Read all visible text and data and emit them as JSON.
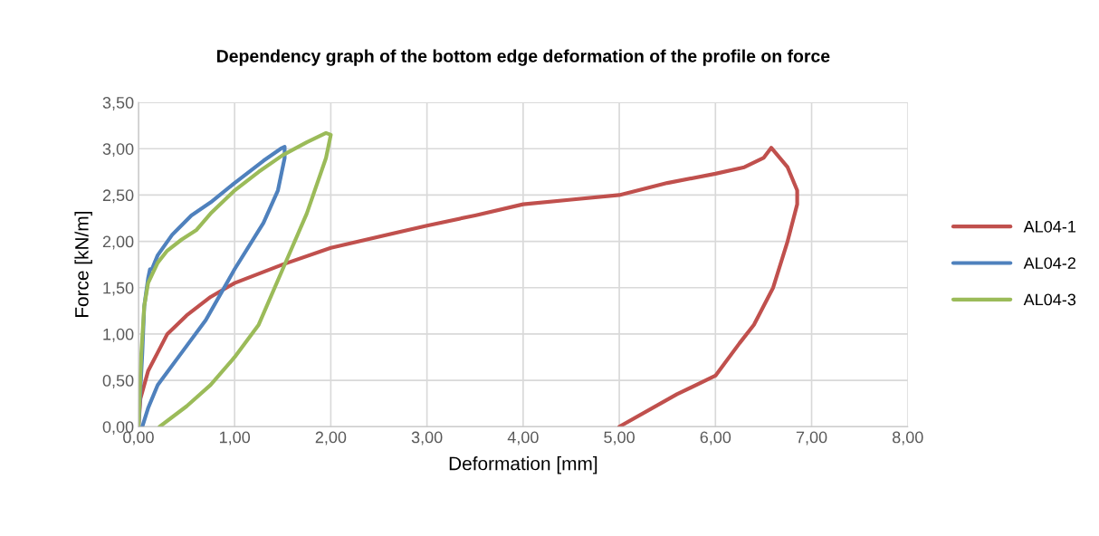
{
  "chart_data": {
    "type": "line",
    "title": "Dependency graph of the bottom edge deformation of the profile on force",
    "xlabel": "Deformation [mm]",
    "ylabel": "Force [kN/m]",
    "xlim": [
      0,
      8
    ],
    "ylim": [
      0,
      3.5
    ],
    "xticks": [
      {
        "value": 0,
        "label": "0,00"
      },
      {
        "value": 1,
        "label": "1,00"
      },
      {
        "value": 2,
        "label": "2,00"
      },
      {
        "value": 3,
        "label": "3,00"
      },
      {
        "value": 4,
        "label": "4,00"
      },
      {
        "value": 5,
        "label": "5,00"
      },
      {
        "value": 6,
        "label": "6,00"
      },
      {
        "value": 7,
        "label": "7,00"
      },
      {
        "value": 8,
        "label": "8,00"
      }
    ],
    "yticks": [
      {
        "value": 0,
        "label": "0,00"
      },
      {
        "value": 0.5,
        "label": "0,50"
      },
      {
        "value": 1,
        "label": "1,00"
      },
      {
        "value": 1.5,
        "label": "1,50"
      },
      {
        "value": 2,
        "label": "2,00"
      },
      {
        "value": 2.5,
        "label": "2,50"
      },
      {
        "value": 3,
        "label": "3,00"
      },
      {
        "value": 3.5,
        "label": "3,50"
      }
    ],
    "grid": true,
    "legend": "right",
    "marker": "none",
    "line_style": "solid",
    "series": [
      {
        "name": "AL04-1",
        "color": "#c0504d",
        "x": [
          0,
          0.02,
          0.1,
          0.2,
          0.3,
          0.5,
          0.75,
          1.0,
          1.5,
          2.0,
          3.0,
          3.5,
          4.0,
          4.5,
          5.0,
          5.5,
          6.0,
          6.3,
          6.5,
          6.58,
          6.75,
          6.85,
          6.85,
          6.75,
          6.6,
          6.4,
          6.25,
          6.0,
          5.6,
          5.0
        ],
        "values": [
          0,
          0.3,
          0.6,
          0.8,
          1.0,
          1.2,
          1.4,
          1.55,
          1.75,
          1.93,
          2.17,
          2.28,
          2.4,
          2.45,
          2.5,
          2.63,
          2.73,
          2.8,
          2.9,
          3.01,
          2.8,
          2.55,
          2.4,
          2.0,
          1.5,
          1.1,
          0.9,
          0.55,
          0.35,
          0
        ]
      },
      {
        "name": "AL04-2",
        "color": "#4f81bd",
        "x": [
          0,
          0.04,
          0.06,
          0.1,
          0.12,
          0.14,
          0.2,
          0.35,
          0.55,
          0.75,
          1.0,
          1.3,
          1.48,
          1.52,
          1.52,
          1.45,
          1.3,
          1.0,
          0.7,
          0.45,
          0.2,
          0.1,
          0.04
        ],
        "values": [
          0,
          0.8,
          1.3,
          1.6,
          1.7,
          1.7,
          1.85,
          2.07,
          2.28,
          2.42,
          2.63,
          2.87,
          3.0,
          3.02,
          2.9,
          2.55,
          2.2,
          1.7,
          1.15,
          0.8,
          0.45,
          0.2,
          0
        ]
      },
      {
        "name": "AL04-3",
        "color": "#9bbb59",
        "x": [
          0,
          0.03,
          0.06,
          0.1,
          0.2,
          0.3,
          0.45,
          0.6,
          0.75,
          1.0,
          1.25,
          1.5,
          1.75,
          1.95,
          2.0,
          1.95,
          1.75,
          1.5,
          1.25,
          1.0,
          0.75,
          0.5,
          0.22
        ],
        "values": [
          0,
          0.8,
          1.3,
          1.55,
          1.77,
          1.9,
          2.02,
          2.12,
          2.3,
          2.55,
          2.75,
          2.93,
          3.07,
          3.17,
          3.15,
          2.9,
          2.3,
          1.7,
          1.1,
          0.75,
          0.45,
          0.22,
          0
        ]
      }
    ]
  }
}
